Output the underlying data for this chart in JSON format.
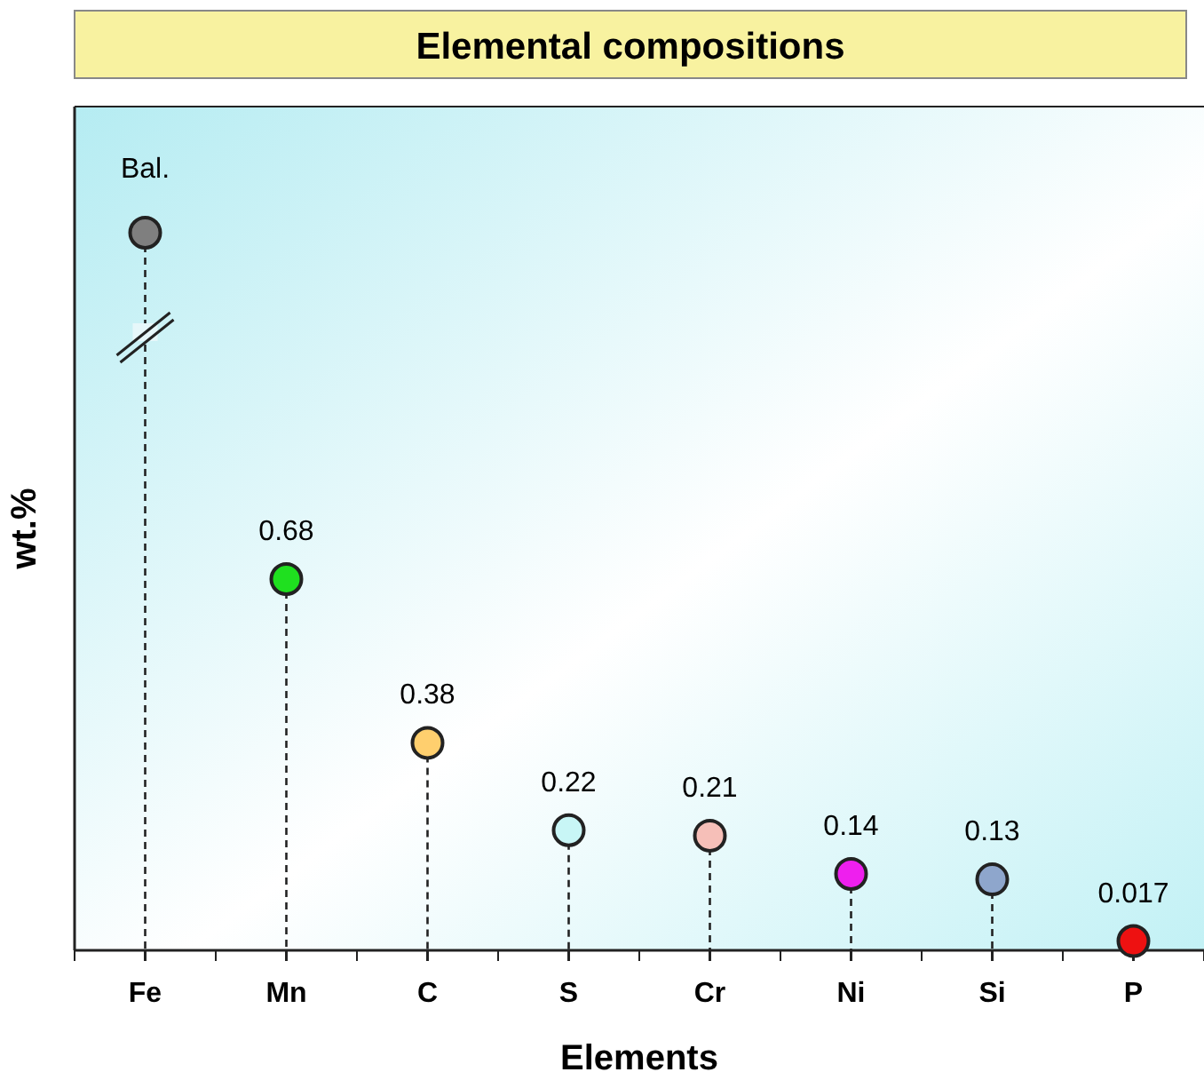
{
  "chart_data": {
    "type": "lollipop",
    "title": "Elemental compositions",
    "xlabel": "Elements",
    "ylabel": "wt.%",
    "categories": [
      "Fe",
      "Mn",
      "C",
      "S",
      "Cr",
      "Ni",
      "Si",
      "P"
    ],
    "values": [
      null,
      0.68,
      0.38,
      0.22,
      0.21,
      0.14,
      0.13,
      0.017
    ],
    "value_labels": [
      "Bal.",
      "0.68",
      "0.38",
      "0.22",
      "0.21",
      "0.14",
      "0.13",
      "0.017"
    ],
    "colors": [
      "#7f7f7f",
      "#1fe01f",
      "#ffcf6e",
      "#c8f6f6",
      "#f6bfb8",
      "#ee1fee",
      "#8ea6cc",
      "#ee1111"
    ],
    "line_style": "dashed",
    "marker": "circle"
  }
}
